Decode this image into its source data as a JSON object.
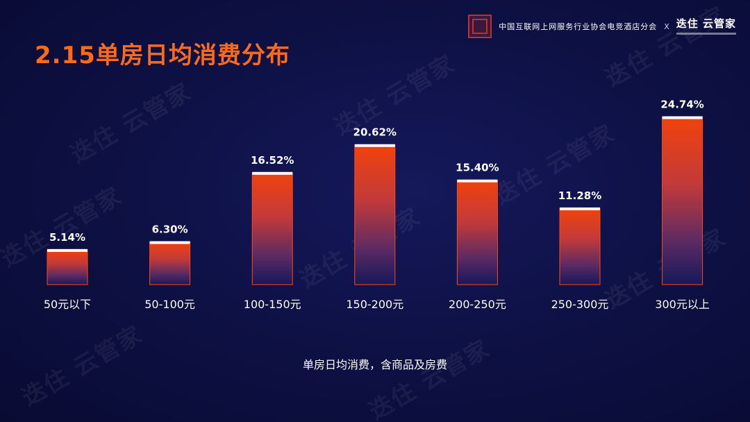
{
  "header": {
    "org": "中国互联网上网服务行业协会电竞酒店分会",
    "separator": "X",
    "brand": "迭住 云管家"
  },
  "watermark": "迭住 云管家",
  "chart_data": {
    "type": "bar",
    "title": "2.15单房日均消费分布",
    "categories": [
      "50元以下",
      "50-100元",
      "100-150元",
      "150-200元",
      "200-250元",
      "250-300元",
      "300元以上"
    ],
    "values": [
      5.14,
      6.3,
      16.52,
      20.62,
      15.4,
      11.28,
      24.74
    ],
    "data_labels": [
      "5.14%",
      "6.30%",
      "16.52%",
      "20.62%",
      "15.40%",
      "11.28%",
      "24.74%"
    ],
    "value_unit": "%",
    "ylim": [
      0,
      25
    ],
    "grid": false,
    "legend": "none",
    "xlabel": "",
    "ylabel": "",
    "caption": "单房日均消费，含商品及房费",
    "colors": {
      "bar_top": "#f2420c",
      "bar_bottom": "#16185a",
      "bar_border": "#ff4a12",
      "cap": "#ffffff",
      "label": "#ffffff",
      "title": "#ff6a1a"
    }
  }
}
